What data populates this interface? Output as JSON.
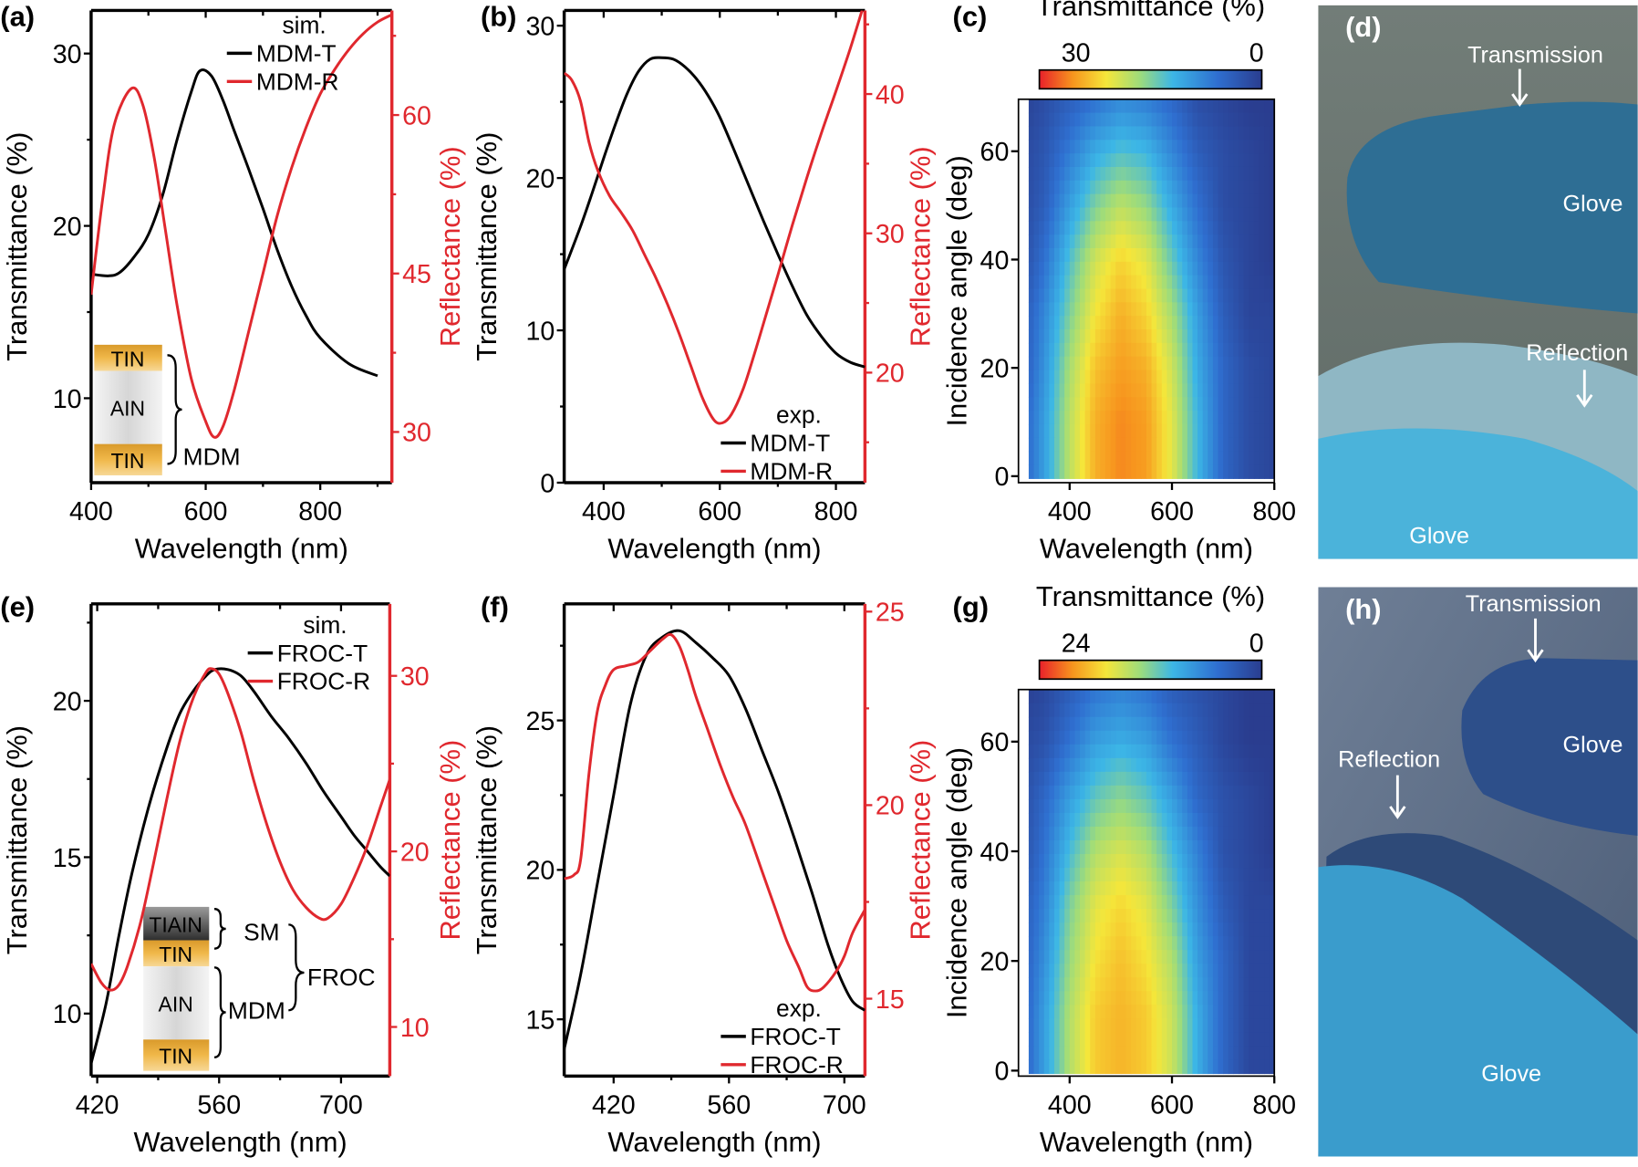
{
  "chart_data": [
    {
      "panel": "(a)",
      "type": "line",
      "xlabel": "Wavelength (nm)",
      "ylabel": "Transmittance (%)",
      "y2label": "Reflectance (%)",
      "xlim": [
        400,
        925
      ],
      "ylim": [
        5.1,
        32.5
      ],
      "y2lim": [
        25.2,
        69.9
      ],
      "xticks": [
        400,
        600,
        800
      ],
      "xminor": [
        500,
        700,
        900
      ],
      "yticks": [
        10,
        20,
        30
      ],
      "yminor": [
        15,
        25
      ],
      "y2ticks": [
        30,
        45,
        60
      ],
      "y2minor": [
        37.5,
        52.5,
        67.5
      ],
      "legend_title": "sim.",
      "legend_pos": "top-right",
      "series": [
        {
          "name": "MDM-T",
          "axis": "left",
          "color": "#000000",
          "x": [
            400,
            430,
            450,
            475,
            500,
            525,
            550,
            575,
            590,
            610,
            630,
            650,
            675,
            700,
            725,
            750,
            775,
            800,
            850,
            900
          ],
          "y": [
            17.2,
            17.1,
            17.3,
            18.2,
            19.5,
            21.8,
            25,
            27.8,
            29,
            28.7,
            27.3,
            25.5,
            23.3,
            21,
            18.6,
            16.5,
            14.8,
            13.5,
            12,
            11.3
          ]
        },
        {
          "name": "MDM-R",
          "axis": "right",
          "color": "#e0282e",
          "x": [
            400,
            420,
            440,
            470,
            490,
            510,
            530,
            550,
            575,
            600,
            615,
            630,
            650,
            675,
            700,
            725,
            750,
            775,
            800,
            825,
            850,
            875,
            900,
            925
          ],
          "y": [
            43,
            52,
            59,
            62.5,
            61,
            56,
            49,
            42,
            35,
            31,
            29.5,
            30.5,
            34,
            39.5,
            45,
            50.5,
            55,
            58.8,
            62,
            64.3,
            66.2,
            67.7,
            68.8,
            69.5
          ]
        }
      ],
      "inset": {
        "layers": [
          "TIN",
          "AIN",
          "TIN"
        ],
        "labels": [
          "MDM"
        ]
      }
    },
    {
      "panel": "(b)",
      "type": "line",
      "xlabel": "Wavelength (nm)",
      "ylabel": "Transmittance (%)",
      "y2label": "Reflectance (%)",
      "xlim": [
        332,
        850
      ],
      "ylim": [
        0,
        31
      ],
      "y2lim": [
        12.1,
        46
      ],
      "xticks": [
        400,
        600,
        800
      ],
      "xminor": [
        500,
        700
      ],
      "yticks": [
        0,
        10,
        20,
        30
      ],
      "yminor": [
        5,
        15,
        25
      ],
      "y2ticks": [
        20,
        30,
        40
      ],
      "y2minor": [
        15,
        25,
        35,
        45
      ],
      "legend_title": "exp.",
      "legend_pos": "bottom-right",
      "series": [
        {
          "name": "MDM-T",
          "axis": "left",
          "color": "#000000",
          "x": [
            332,
            360,
            380,
            400,
            420,
            440,
            460,
            480,
            500,
            520,
            540,
            560,
            580,
            600,
            625,
            650,
            675,
            700,
            725,
            750,
            775,
            800,
            825,
            850
          ],
          "y": [
            14,
            16.8,
            19,
            21.3,
            23.5,
            25.5,
            27,
            27.8,
            27.9,
            27.8,
            27.3,
            26.5,
            25.4,
            24,
            21.8,
            19.5,
            17.2,
            15,
            12.9,
            11,
            9.6,
            8.5,
            7.9,
            7.6
          ]
        },
        {
          "name": "MDM-R",
          "axis": "right",
          "color": "#e0282e",
          "x": [
            332,
            345,
            360,
            375,
            390,
            410,
            430,
            450,
            470,
            490,
            510,
            530,
            550,
            570,
            590,
            605,
            620,
            640,
            660,
            680,
            700,
            725,
            750,
            775,
            800,
            825,
            845
          ],
          "y": [
            41.5,
            41,
            39.5,
            36.5,
            34.5,
            32.7,
            31.5,
            30.2,
            28.5,
            26.8,
            24.9,
            22.8,
            20.5,
            18.2,
            16.6,
            16.4,
            17,
            18.8,
            21.4,
            24.2,
            27,
            30.6,
            34,
            37.2,
            40.2,
            43.3,
            46
          ]
        }
      ]
    },
    {
      "panel": "(c)",
      "type": "heatmap",
      "xlabel": "Wavelength (nm)",
      "ylabel": "Incidence angle (deg)",
      "xlim": [
        300,
        800
      ],
      "ylim": [
        -1.2,
        69.6
      ],
      "xticks": [
        400,
        600,
        800
      ],
      "yticks": [
        0,
        20,
        40,
        60
      ],
      "colorbar": {
        "title": "Transmittance (%)",
        "max": 30,
        "min": 0,
        "tick_labels": [
          "30",
          "0"
        ]
      },
      "x": [
        300,
        350,
        400,
        450,
        500,
        550,
        600,
        650,
        700,
        750,
        800
      ],
      "y": [
        0,
        10,
        20,
        30,
        40,
        50,
        60,
        70
      ],
      "z": [
        [
          3,
          10,
          18,
          24,
          26,
          25,
          20,
          12,
          5,
          2,
          1
        ],
        [
          3,
          10,
          18,
          24,
          26,
          25,
          20,
          12,
          5,
          2,
          1
        ],
        [
          2,
          9,
          17,
          23,
          25,
          24,
          19,
          11,
          5,
          2,
          1
        ],
        [
          2,
          8,
          15,
          21,
          24,
          22,
          17,
          10,
          4,
          1,
          1
        ],
        [
          1,
          6,
          13,
          19,
          22,
          20,
          14,
          8,
          3,
          1,
          0
        ],
        [
          1,
          4,
          10,
          15,
          18,
          16,
          11,
          6,
          2,
          1,
          0
        ],
        [
          1,
          3,
          7,
          11,
          13,
          12,
          8,
          4,
          2,
          1,
          0
        ],
        [
          0,
          2,
          4,
          6,
          8,
          7,
          5,
          2,
          1,
          0,
          0
        ]
      ]
    },
    {
      "panel": "(e)",
      "type": "line",
      "xlabel": "Wavelength (nm)",
      "ylabel": "Transmittance (%)",
      "y2label": "Reflectance (%)",
      "xlim": [
        413,
        756
      ],
      "ylim": [
        8,
        23.1
      ],
      "y2lim": [
        7.2,
        34.1
      ],
      "xticks": [
        420,
        560,
        700
      ],
      "xminor": [
        490,
        630
      ],
      "yticks": [
        10,
        15,
        20
      ],
      "yminor": [
        12.5,
        17.5,
        22.5
      ],
      "y2ticks": [
        10,
        20,
        30
      ],
      "y2minor": [
        15,
        25
      ],
      "legend_title": "sim.",
      "legend_pos": "top-right",
      "series": [
        {
          "name": "FROC-T",
          "axis": "left",
          "color": "#000000",
          "x": [
            413,
            430,
            445,
            460,
            480,
            500,
            515,
            530,
            545,
            555,
            570,
            585,
            600,
            620,
            640,
            660,
            680,
            700,
            715,
            730,
            745,
            756
          ],
          "y": [
            8.4,
            10.3,
            12.5,
            14.5,
            16.7,
            18.5,
            19.6,
            20.3,
            20.8,
            21,
            21,
            20.8,
            20.3,
            19.5,
            18.8,
            18,
            17.1,
            16.3,
            15.7,
            15.2,
            14.7,
            14.4
          ]
        },
        {
          "name": "FROC-R",
          "axis": "right",
          "color": "#e0282e",
          "x": [
            413,
            425,
            435,
            445,
            455,
            470,
            485,
            500,
            515,
            530,
            545,
            552,
            560,
            570,
            585,
            600,
            615,
            630,
            645,
            660,
            675,
            685,
            700,
            715,
            730,
            745,
            756
          ],
          "y": [
            13.6,
            12.5,
            12.1,
            12.4,
            13.5,
            16,
            19.4,
            23,
            26.3,
            28.7,
            30.2,
            30.4,
            30.1,
            29,
            26.8,
            24,
            21.5,
            19.4,
            17.8,
            16.8,
            16.2,
            16.2,
            17,
            18.5,
            20.3,
            22.5,
            24.1
          ]
        }
      ],
      "inset": {
        "layers": [
          "TIAIN",
          "TIN",
          "AIN",
          "TIN"
        ],
        "labels": [
          "SM",
          "MDM",
          "FROC"
        ]
      }
    },
    {
      "panel": "(f)",
      "type": "line",
      "xlabel": "Wavelength (nm)",
      "ylabel": "Transmittance (%)",
      "y2label": "Reflectance (%)",
      "xlim": [
        360,
        725
      ],
      "ylim": [
        13.1,
        28.9
      ],
      "y2lim": [
        13,
        25.2
      ],
      "xticks": [
        420,
        560,
        700
      ],
      "xminor": [
        490,
        630
      ],
      "yticks": [
        15,
        20,
        25
      ],
      "yminor": [
        17.5,
        22.5,
        27.5
      ],
      "y2ticks": [
        15,
        20,
        25
      ],
      "y2minor": [
        17.5,
        22.5
      ],
      "legend_title": "exp.",
      "legend_pos": "bottom-right",
      "series": [
        {
          "name": "FROC-T",
          "axis": "left",
          "color": "#000000",
          "x": [
            360,
            380,
            400,
            420,
            440,
            460,
            480,
            500,
            520,
            540,
            560,
            580,
            600,
            620,
            640,
            660,
            680,
            695,
            710,
            725
          ],
          "y": [
            14,
            16.5,
            19.5,
            22.5,
            25.5,
            27.2,
            27.8,
            28,
            27.6,
            27.1,
            26.5,
            25.4,
            24,
            22.6,
            21,
            19.3,
            17.5,
            16.4,
            15.6,
            15.3
          ]
        },
        {
          "name": "FROC-R",
          "axis": "right",
          "color": "#e0282e",
          "x": [
            360,
            372,
            380,
            390,
            400,
            410,
            420,
            435,
            450,
            465,
            480,
            490,
            500,
            510,
            520,
            535,
            550,
            565,
            580,
            600,
            615,
            630,
            645,
            655,
            665,
            675,
            690,
            700,
            710,
            725
          ],
          "y": [
            18.1,
            18.2,
            18.6,
            20.8,
            22.4,
            23.1,
            23.5,
            23.6,
            23.7,
            24,
            24.3,
            24.4,
            24.1,
            23.5,
            22.8,
            21.9,
            21,
            20.2,
            19.5,
            18.3,
            17.4,
            16.5,
            15.8,
            15.3,
            15.2,
            15.3,
            15.7,
            16.1,
            16.7,
            17.3
          ]
        }
      ]
    },
    {
      "panel": "(g)",
      "type": "heatmap",
      "xlabel": "Wavelength (nm)",
      "ylabel": "Incidence angle (deg)",
      "xlim": [
        300,
        800
      ],
      "ylim": [
        -1,
        69.5
      ],
      "xticks": [
        400,
        600,
        800
      ],
      "yticks": [
        0,
        20,
        40,
        60
      ],
      "colorbar": {
        "title": "Transmittance (%)",
        "max": 24,
        "min": 0,
        "tick_labels": [
          "24",
          "0"
        ]
      },
      "x": [
        300,
        350,
        400,
        450,
        500,
        550,
        600,
        650,
        700,
        750,
        800
      ],
      "y": [
        0,
        10,
        20,
        30,
        40,
        50,
        60,
        70
      ],
      "z": [
        [
          2,
          8,
          14,
          18,
          19,
          18,
          15,
          9,
          4,
          1,
          1
        ],
        [
          2,
          8,
          14,
          18,
          19,
          18,
          15,
          9,
          4,
          1,
          1
        ],
        [
          2,
          7,
          13,
          17,
          18.5,
          17,
          14,
          8,
          4,
          1,
          1
        ],
        [
          2,
          6,
          12,
          16,
          17.5,
          16,
          12,
          7,
          3,
          1,
          1
        ],
        [
          1,
          5,
          10,
          14,
          15.5,
          14,
          10,
          6,
          2,
          1,
          0
        ],
        [
          1,
          4,
          8,
          11,
          12.5,
          11,
          8,
          4,
          2,
          1,
          0
        ],
        [
          1,
          2,
          5,
          8,
          9,
          8,
          5,
          3,
          1,
          0,
          0
        ],
        [
          0,
          1,
          3,
          5,
          6,
          5,
          3,
          2,
          1,
          0,
          0
        ]
      ]
    }
  ],
  "photos": [
    {
      "panel": "(d)",
      "labels": [
        "Transmission",
        "Glove",
        "Reflection",
        "Glove"
      ]
    },
    {
      "panel": "(h)",
      "labels": [
        "Transmission",
        "Glove",
        "Reflection",
        "Glove"
      ]
    }
  ],
  "colors": {
    "transmittance": "#000000",
    "reflectance": "#e0282e",
    "tin_layer": "#e8a93a",
    "aln_layer": "#e6e6e6",
    "tialn_layer": "#4a4a4a"
  }
}
